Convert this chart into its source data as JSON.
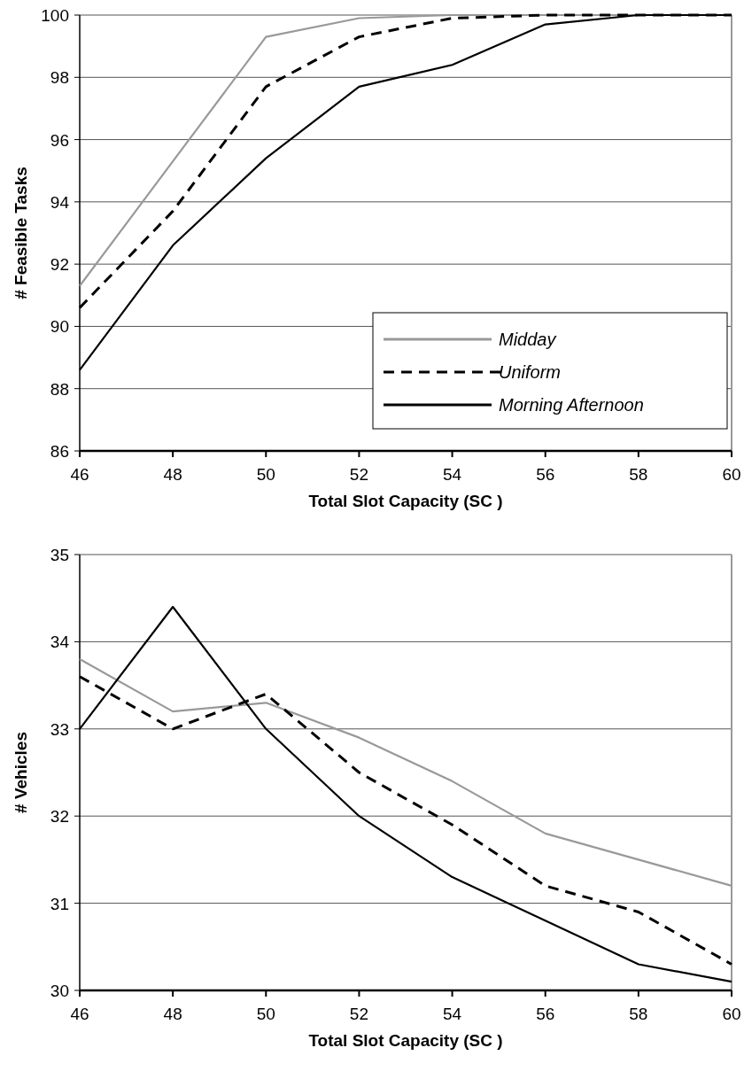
{
  "chart_data": [
    {
      "type": "line",
      "xlabel": "Total Slot Capacity (SC )",
      "ylabel": "# Feasible Tasks",
      "x": [
        46,
        48,
        50,
        52,
        54,
        56,
        58,
        60
      ],
      "xlim": [
        46,
        60
      ],
      "xticks": [
        46,
        48,
        50,
        52,
        54,
        56,
        58,
        60
      ],
      "ylim": [
        86,
        100
      ],
      "yticks": [
        86,
        88,
        90,
        92,
        94,
        96,
        98,
        100
      ],
      "grid": "y",
      "legend": "bottom right",
      "series": [
        {
          "name": "Midday",
          "color": "#999999",
          "line_style": "solid",
          "values": [
            91.3,
            95.3,
            99.3,
            99.9,
            100,
            100,
            100,
            100
          ]
        },
        {
          "name": "Uniform",
          "color": "#000000",
          "line_style": "dashed",
          "values": [
            90.6,
            93.7,
            97.7,
            99.3,
            99.9,
            100,
            100,
            100
          ]
        },
        {
          "name": "Morning Afternoon",
          "color": "#000000",
          "line_style": "solid",
          "values": [
            88.6,
            92.6,
            95.4,
            97.7,
            98.4,
            99.7,
            100,
            100
          ]
        }
      ]
    },
    {
      "type": "line",
      "xlabel": "Total Slot Capacity (SC )",
      "ylabel": "# Vehicles",
      "x": [
        46,
        48,
        50,
        52,
        54,
        56,
        58,
        60
      ],
      "xlim": [
        46,
        60
      ],
      "xticks": [
        46,
        48,
        50,
        52,
        54,
        56,
        58,
        60
      ],
      "ylim": [
        30,
        35
      ],
      "yticks": [
        30,
        31,
        32,
        33,
        34,
        35
      ],
      "grid": "y",
      "series": [
        {
          "color": "#999999",
          "line_style": "solid",
          "values": [
            33.8,
            33.2,
            33.3,
            32.9,
            32.4,
            31.8,
            31.5,
            31.2
          ]
        },
        {
          "color": "#000000",
          "line_style": "dashed",
          "values": [
            33.6,
            33.0,
            33.4,
            32.5,
            31.9,
            31.2,
            30.9,
            30.3
          ]
        },
        {
          "color": "#000000",
          "line_style": "solid",
          "values": [
            33.0,
            34.4,
            33.0,
            32.0,
            31.3,
            30.8,
            30.3,
            30.1
          ]
        }
      ]
    }
  ]
}
